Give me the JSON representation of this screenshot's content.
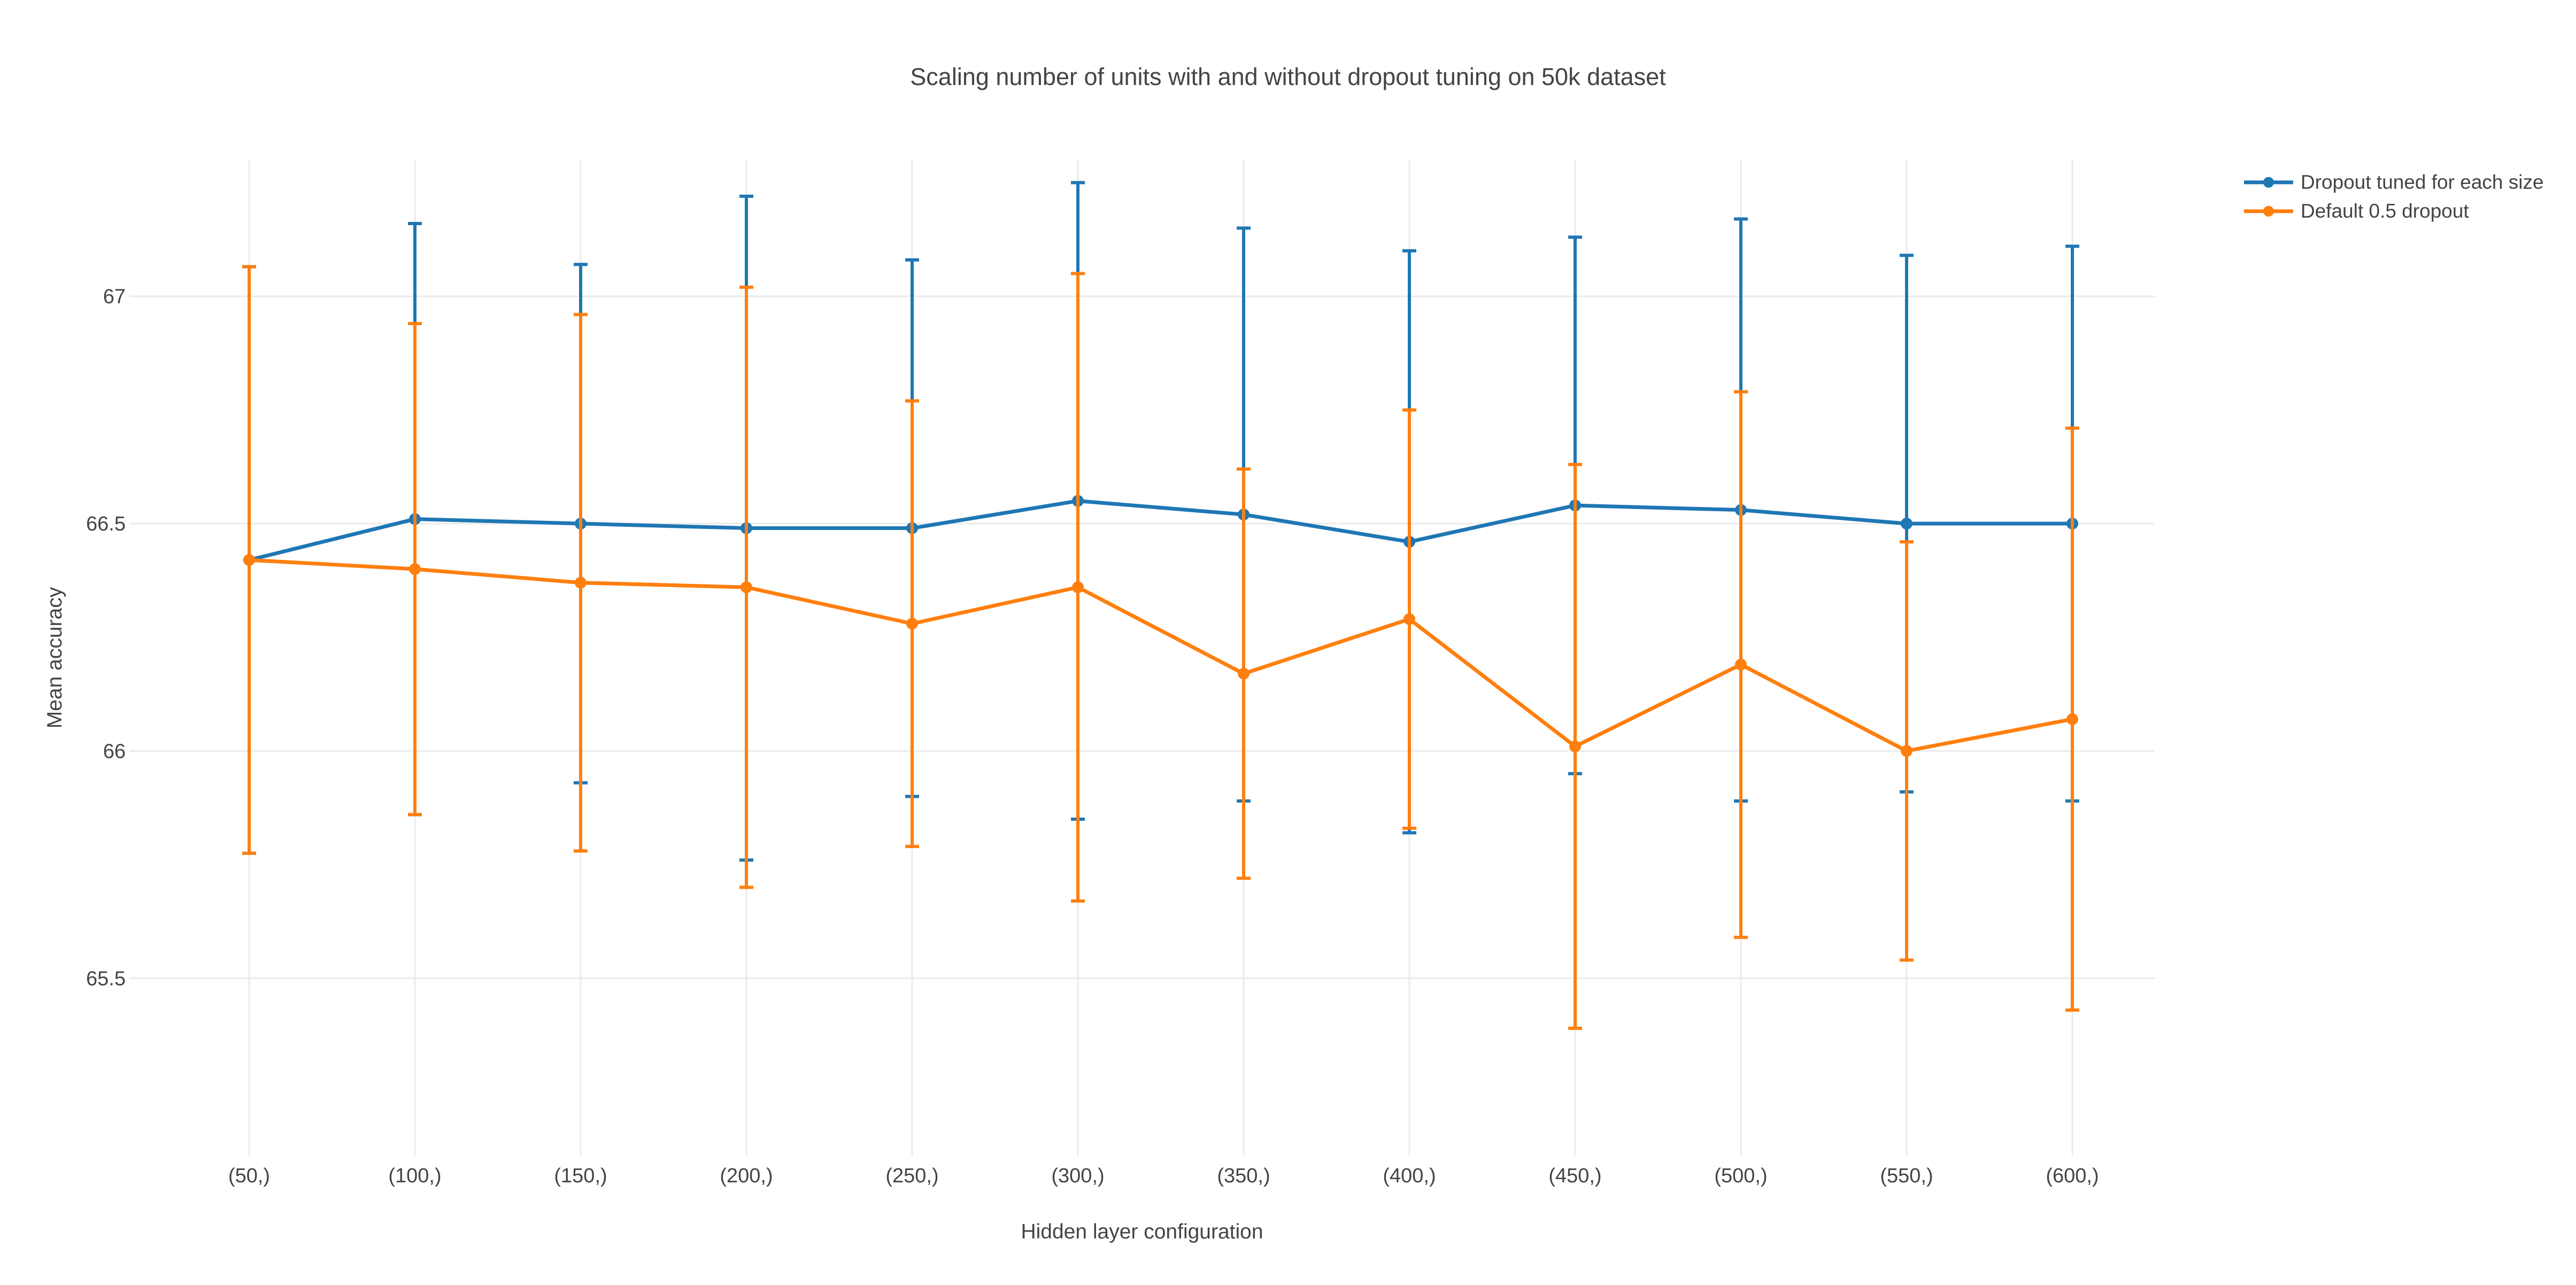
{
  "title": "Scaling number of units with and without dropout tuning on 50k dataset",
  "colors": {
    "series_blue": "#1f77b4",
    "series_orange": "#ff7f0e",
    "text": "#444444",
    "grid": "#ebebeb",
    "background": "#ffffff"
  },
  "chart_data": {
    "type": "line",
    "title": "Scaling number of units with and without dropout tuning on 50k dataset",
    "xlabel": "Hidden layer configuration",
    "ylabel": "Mean accuracy",
    "categories": [
      "(50,)",
      "(100,)",
      "(150,)",
      "(200,)",
      "(250,)",
      "(300,)",
      "(350,)",
      "(400,)",
      "(450,)",
      "(500,)",
      "(550,)",
      "(600,)"
    ],
    "yticks": [
      65.5,
      66,
      66.5,
      67
    ],
    "ylim": [
      65.11,
      67.3
    ],
    "grid": true,
    "legend_position": "top-right",
    "error_bars": true,
    "series": [
      {
        "name": "Dropout tuned for each size",
        "color": "#1f77b4",
        "values": [
          66.42,
          66.51,
          66.5,
          66.49,
          66.49,
          66.55,
          66.52,
          66.46,
          66.54,
          66.53,
          66.5,
          66.5
        ],
        "errors": [
          0.645,
          0.65,
          0.57,
          0.73,
          0.59,
          0.7,
          0.63,
          0.64,
          0.59,
          0.64,
          0.59,
          0.61
        ]
      },
      {
        "name": "Default 0.5 dropout",
        "color": "#ff7f0e",
        "values": [
          66.42,
          66.4,
          66.37,
          66.36,
          66.28,
          66.36,
          66.17,
          66.29,
          66.01,
          66.19,
          66.0,
          66.07
        ],
        "errors": [
          0.645,
          0.54,
          0.59,
          0.66,
          0.49,
          0.69,
          0.45,
          0.46,
          0.62,
          0.6,
          0.46,
          0.64
        ]
      }
    ]
  }
}
